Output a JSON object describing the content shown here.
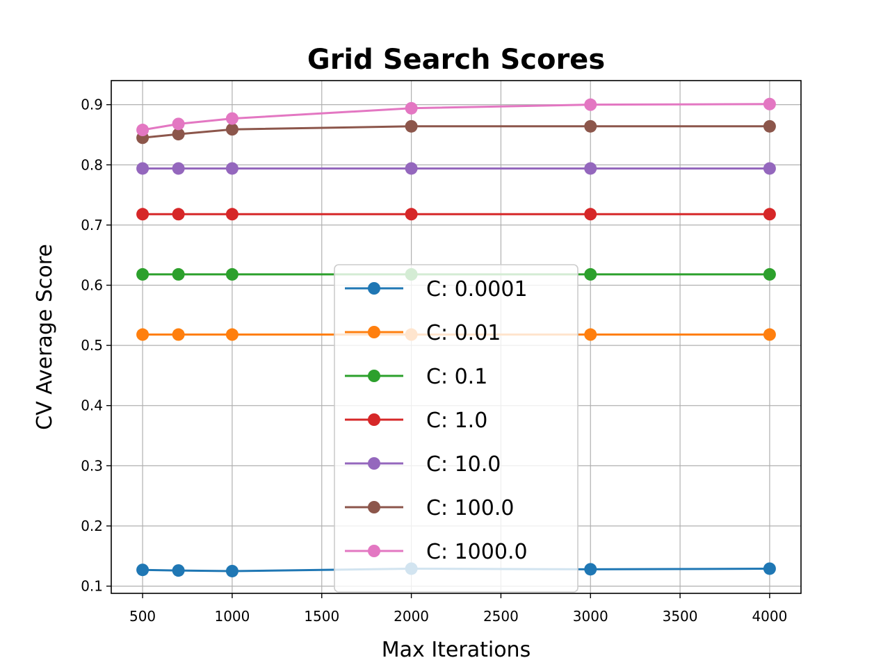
{
  "chart_data": {
    "type": "line",
    "title": "Grid Search Scores",
    "xlabel": "Max Iterations",
    "ylabel": "CV Average Score",
    "x": [
      500,
      700,
      1000,
      2000,
      3000,
      4000
    ],
    "xlim": [
      325,
      4175
    ],
    "ylim": [
      0.088,
      0.94
    ],
    "xticks": [
      500,
      1000,
      1500,
      2000,
      2500,
      3000,
      3500,
      4000
    ],
    "yticks": [
      0.1,
      0.2,
      0.3,
      0.4,
      0.5,
      0.6,
      0.7,
      0.8,
      0.9
    ],
    "xtick_labels": [
      "500",
      "1000",
      "1500",
      "2000",
      "2500",
      "3000",
      "3500",
      "4000"
    ],
    "ytick_labels": [
      "0.1",
      "0.2",
      "0.3",
      "0.4",
      "0.5",
      "0.6",
      "0.7",
      "0.8",
      "0.9"
    ],
    "grid": true,
    "legend_position": "bottom-center",
    "series": [
      {
        "name": "C: 0.0001",
        "color": "#1f77b4",
        "values": [
          0.127,
          0.126,
          0.125,
          0.129,
          0.128,
          0.129
        ]
      },
      {
        "name": "C: 0.01",
        "color": "#ff7f0e",
        "values": [
          0.518,
          0.518,
          0.518,
          0.518,
          0.518,
          0.518
        ]
      },
      {
        "name": "C: 0.1",
        "color": "#2ca02c",
        "values": [
          0.618,
          0.618,
          0.618,
          0.618,
          0.618,
          0.618
        ]
      },
      {
        "name": "C: 1.0",
        "color": "#d62728",
        "values": [
          0.718,
          0.718,
          0.718,
          0.718,
          0.718,
          0.718
        ]
      },
      {
        "name": "C: 10.0",
        "color": "#9467bd",
        "values": [
          0.794,
          0.794,
          0.794,
          0.794,
          0.794,
          0.794
        ]
      },
      {
        "name": "C: 100.0",
        "color": "#8c564b",
        "values": [
          0.845,
          0.851,
          0.859,
          0.864,
          0.864,
          0.864
        ]
      },
      {
        "name": "C: 1000.0",
        "color": "#e377c2",
        "values": [
          0.858,
          0.868,
          0.877,
          0.894,
          0.9,
          0.901
        ]
      }
    ]
  }
}
